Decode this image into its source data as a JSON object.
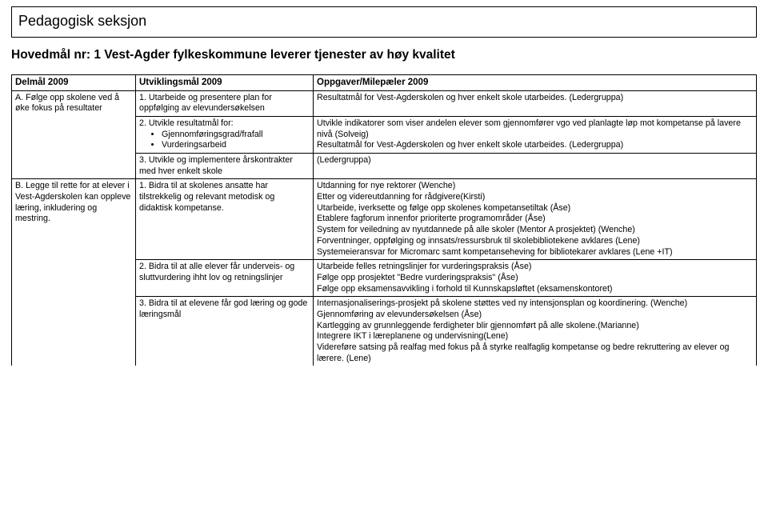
{
  "title_box": "Pedagogisk seksjon",
  "main_goal": "Hovedmål nr: 1 Vest-Agder fylkeskommune leverer tjenester av høy kvalitet",
  "headers": {
    "col1": "Delmål 2009",
    "col2": "Utviklingsmål 2009",
    "col3": "Oppgaver/Milepæler 2009"
  },
  "rowA": {
    "delmaal": "A. Følge opp skolene ved å øke fokus på resultater",
    "utv1": "1. Utarbeide og presentere plan for oppfølging av elevundersøkelsen",
    "utv2_lead": "2. Utvikle resultatmål for:",
    "utv2_b1": "Gjennomføringsgrad/frafall",
    "utv2_b2": "Vurderingsarbeid",
    "utv3": "3. Utvikle og implementere årskontrakter med hver enkelt skole",
    "opp1": "Resultatmål for Vest-Agderskolen og hver enkelt skole utarbeides. (Ledergruppa)",
    "opp2a": "Utvikle indikatorer som viser andelen elever som gjennomfører vgo ved planlagte løp mot kompetanse på lavere nivå (Solveig)",
    "opp2b": "Resultatmål for Vest-Agderskolen og hver enkelt skole utarbeides. (Ledergruppa)",
    "opp3": "(Ledergruppa)"
  },
  "rowB": {
    "delmaal": "B. Legge til rette for at elever i Vest-Agderskolen kan oppleve læring, inkludering og mestring.",
    "utv1": "1. Bidra til at skolenes ansatte har tilstrekkelig og relevant metodisk og didaktisk kompetanse.",
    "utv2": "2. Bidra til at alle elever får underveis- og sluttvurdering ihht lov og retningslinjer",
    "utv3": "3. Bidra til at elevene får god læring og gode læringsmål",
    "opp1_l1": "Utdanning for nye rektorer (Wenche)",
    "opp1_l2": "Etter og videreutdanning for rådgivere(Kirsti)",
    "opp1_l3": "Utarbeide, iverksette og følge opp skolenes kompetansetiltak (Åse)",
    "opp1_l4": "Etablere fagforum innenfor prioriterte programområder (Åse)",
    "opp1_l5": "System for veiledning av nyutdannede på alle skoler (Mentor A prosjektet) (Wenche)",
    "opp1_l6": "Forventninger, oppfølging og innsats/ressursbruk til skolebibliotekene avklares (Lene)",
    "opp1_l7": "Systemeieransvar for Micromarc samt kompetanseheving for bibliotekarer avklares (Lene +IT)",
    "opp2_l1": "Utarbeide felles retningslinjer for vurderingspraksis (Åse)",
    "opp2_l2": "Følge opp prosjektet \"Bedre vurderingspraksis\" (Åse)",
    "opp2_l3": "Følge opp eksamensavvikling i forhold til Kunnskapsløftet (eksamenskontoret)",
    "opp3_l1": "Internasjonaliserings-prosjekt på skolene støttes ved ny intensjonsplan og koordinering. (Wenche)",
    "opp3_l2": "Gjennomføring av elevundersøkelsen (Åse)",
    "opp3_l3": "Kartlegging av grunnleggende ferdigheter blir gjennomført på alle skolene.(Marianne)",
    "opp3_l4": "Integrere IKT i læreplanene og undervisning(Lene)",
    "opp3_l5": "Videreføre satsing på realfag med fokus på å styrke realfaglig kompetanse og bedre rekruttering av elever og lærere. (Lene)"
  }
}
